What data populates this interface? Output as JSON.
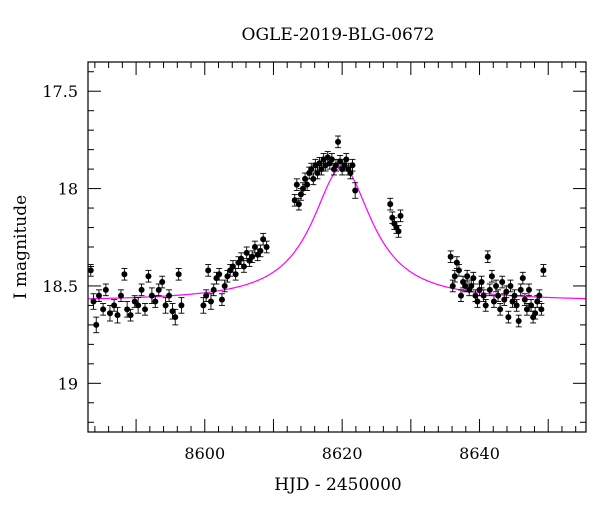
{
  "chart_data": {
    "type": "scatter",
    "title": "OGLE-2019-BLG-0672",
    "xlabel": "HJD - 2450000",
    "ylabel": "I magnitude",
    "xlim": [
      8583.0,
      8655.5
    ],
    "ylim": [
      19.25,
      17.35
    ],
    "y_axis_inverted": true,
    "x_ticks": [
      8600,
      8620,
      8640
    ],
    "x_tick_labels": [
      "8600",
      "8620",
      "8640"
    ],
    "y_ticks": [
      17.5,
      18,
      18.5,
      19
    ],
    "y_tick_labels": [
      "17.5",
      "18",
      "18.5",
      "19"
    ],
    "grid": false,
    "colors": {
      "points": "#000000",
      "model": "#ff00ff",
      "frame": "#000000"
    },
    "model_curve": {
      "name": "",
      "type": "microlensing-fit",
      "t0": 8620.0,
      "baseline_mag": 18.58,
      "peak_mag": 17.89,
      "half_width_days": 5.3
    },
    "series": [
      {
        "name": "",
        "points": [
          [
            8583.4,
            18.42,
            0.03
          ],
          [
            8583.8,
            18.58,
            0.04
          ],
          [
            8584.2,
            18.7,
            0.04
          ],
          [
            8584.6,
            18.55,
            0.03
          ],
          [
            8585.2,
            18.62,
            0.03
          ],
          [
            8585.6,
            18.52,
            0.03
          ],
          [
            8586.2,
            18.64,
            0.04
          ],
          [
            8586.8,
            18.6,
            0.03
          ],
          [
            8587.3,
            18.65,
            0.04
          ],
          [
            8587.8,
            18.55,
            0.03
          ],
          [
            8588.3,
            18.44,
            0.03
          ],
          [
            8588.7,
            18.62,
            0.04
          ],
          [
            8589.2,
            18.65,
            0.03
          ],
          [
            8589.8,
            18.58,
            0.03
          ],
          [
            8590.3,
            18.6,
            0.04
          ],
          [
            8590.8,
            18.52,
            0.03
          ],
          [
            8591.3,
            18.62,
            0.03
          ],
          [
            8591.8,
            18.45,
            0.03
          ],
          [
            8592.3,
            18.55,
            0.04
          ],
          [
            8592.8,
            18.58,
            0.03
          ],
          [
            8593.3,
            18.52,
            0.03
          ],
          [
            8593.8,
            18.48,
            0.03
          ],
          [
            8594.3,
            18.6,
            0.04
          ],
          [
            8594.8,
            18.55,
            0.03
          ],
          [
            8595.3,
            18.63,
            0.04
          ],
          [
            8595.7,
            18.66,
            0.04
          ],
          [
            8596.2,
            18.44,
            0.03
          ],
          [
            8596.6,
            18.6,
            0.04
          ],
          [
            8599.8,
            18.6,
            0.04
          ],
          [
            8600.2,
            18.55,
            0.03
          ],
          [
            8600.5,
            18.42,
            0.03
          ],
          [
            8600.9,
            18.58,
            0.04
          ],
          [
            8601.3,
            18.52,
            0.03
          ],
          [
            8601.7,
            18.46,
            0.03
          ],
          [
            8602.1,
            18.44,
            0.03
          ],
          [
            8602.5,
            18.57,
            0.03
          ],
          [
            8602.9,
            18.5,
            0.03
          ],
          [
            8603.3,
            18.45,
            0.03
          ],
          [
            8603.7,
            18.42,
            0.03
          ],
          [
            8604.1,
            18.4,
            0.03
          ],
          [
            8604.5,
            18.44,
            0.03
          ],
          [
            8604.9,
            18.38,
            0.03
          ],
          [
            8605.3,
            18.36,
            0.03
          ],
          [
            8605.7,
            18.4,
            0.03
          ],
          [
            8606.1,
            18.33,
            0.03
          ],
          [
            8606.5,
            18.37,
            0.03
          ],
          [
            8606.9,
            18.35,
            0.03
          ],
          [
            8607.3,
            18.3,
            0.03
          ],
          [
            8607.7,
            18.34,
            0.03
          ],
          [
            8608.1,
            18.32,
            0.03
          ],
          [
            8608.5,
            18.26,
            0.03
          ],
          [
            8609.0,
            18.3,
            0.03
          ],
          [
            8613.1,
            18.06,
            0.03
          ],
          [
            8613.4,
            17.98,
            0.03
          ],
          [
            8613.7,
            18.08,
            0.03
          ],
          [
            8614.0,
            18.03,
            0.03
          ],
          [
            8614.3,
            18.0,
            0.03
          ],
          [
            8614.6,
            17.95,
            0.03
          ],
          [
            8614.9,
            17.98,
            0.03
          ],
          [
            8615.2,
            17.92,
            0.03
          ],
          [
            8615.5,
            17.9,
            0.03
          ],
          [
            8615.8,
            17.95,
            0.03
          ],
          [
            8616.1,
            17.88,
            0.03
          ],
          [
            8616.4,
            17.92,
            0.03
          ],
          [
            8616.7,
            17.87,
            0.03
          ],
          [
            8617.0,
            17.9,
            0.03
          ],
          [
            8617.3,
            17.85,
            0.03
          ],
          [
            8617.6,
            17.88,
            0.03
          ],
          [
            8617.9,
            17.84,
            0.03
          ],
          [
            8618.2,
            17.87,
            0.03
          ],
          [
            8618.5,
            17.85,
            0.03
          ],
          [
            8618.8,
            17.9,
            0.03
          ],
          [
            8619.1,
            17.88,
            0.03
          ],
          [
            8619.4,
            17.76,
            0.03
          ],
          [
            8619.7,
            17.86,
            0.03
          ],
          [
            8620.0,
            17.9,
            0.03
          ],
          [
            8620.3,
            17.88,
            0.03
          ],
          [
            8620.6,
            17.85,
            0.03
          ],
          [
            8620.9,
            17.9,
            0.03
          ],
          [
            8621.2,
            17.92,
            0.03
          ],
          [
            8621.5,
            17.88,
            0.03
          ],
          [
            8621.9,
            18.01,
            0.04
          ],
          [
            8627.0,
            18.08,
            0.03
          ],
          [
            8627.3,
            18.15,
            0.03
          ],
          [
            8627.6,
            18.18,
            0.03
          ],
          [
            8627.9,
            18.2,
            0.03
          ],
          [
            8628.2,
            18.22,
            0.03
          ],
          [
            8628.5,
            18.14,
            0.03
          ],
          [
            8635.8,
            18.35,
            0.03
          ],
          [
            8636.1,
            18.5,
            0.03
          ],
          [
            8636.4,
            18.45,
            0.03
          ],
          [
            8636.7,
            18.38,
            0.03
          ],
          [
            8637.0,
            18.42,
            0.03
          ],
          [
            8637.3,
            18.55,
            0.03
          ],
          [
            8637.6,
            18.48,
            0.03
          ],
          [
            8637.9,
            18.5,
            0.03
          ],
          [
            8638.2,
            18.45,
            0.03
          ],
          [
            8638.5,
            18.52,
            0.03
          ],
          [
            8638.8,
            18.5,
            0.03
          ],
          [
            8639.1,
            18.46,
            0.03
          ],
          [
            8639.4,
            18.55,
            0.03
          ],
          [
            8639.7,
            18.58,
            0.03
          ],
          [
            8640.0,
            18.52,
            0.03
          ],
          [
            8640.3,
            18.48,
            0.03
          ],
          [
            8640.6,
            18.55,
            0.03
          ],
          [
            8640.9,
            18.6,
            0.03
          ],
          [
            8641.2,
            18.35,
            0.03
          ],
          [
            8641.5,
            18.52,
            0.03
          ],
          [
            8641.8,
            18.45,
            0.03
          ],
          [
            8642.1,
            18.58,
            0.03
          ],
          [
            8642.4,
            18.5,
            0.03
          ],
          [
            8642.7,
            18.55,
            0.03
          ],
          [
            8643.0,
            18.62,
            0.03
          ],
          [
            8643.3,
            18.48,
            0.03
          ],
          [
            8643.6,
            18.57,
            0.03
          ],
          [
            8643.9,
            18.53,
            0.03
          ],
          [
            8644.2,
            18.66,
            0.03
          ],
          [
            8644.5,
            18.5,
            0.03
          ],
          [
            8644.8,
            18.58,
            0.03
          ],
          [
            8645.1,
            18.55,
            0.03
          ],
          [
            8645.4,
            18.6,
            0.03
          ],
          [
            8645.7,
            18.68,
            0.03
          ],
          [
            8646.0,
            18.52,
            0.03
          ],
          [
            8646.3,
            18.46,
            0.03
          ],
          [
            8646.6,
            18.57,
            0.03
          ],
          [
            8646.9,
            18.62,
            0.03
          ],
          [
            8647.2,
            18.52,
            0.03
          ],
          [
            8647.5,
            18.6,
            0.03
          ],
          [
            8647.8,
            18.66,
            0.03
          ],
          [
            8648.1,
            18.64,
            0.03
          ],
          [
            8648.4,
            18.58,
            0.03
          ],
          [
            8648.7,
            18.55,
            0.03
          ],
          [
            8649.0,
            18.62,
            0.03
          ],
          [
            8649.3,
            18.42,
            0.03
          ]
        ]
      }
    ]
  }
}
